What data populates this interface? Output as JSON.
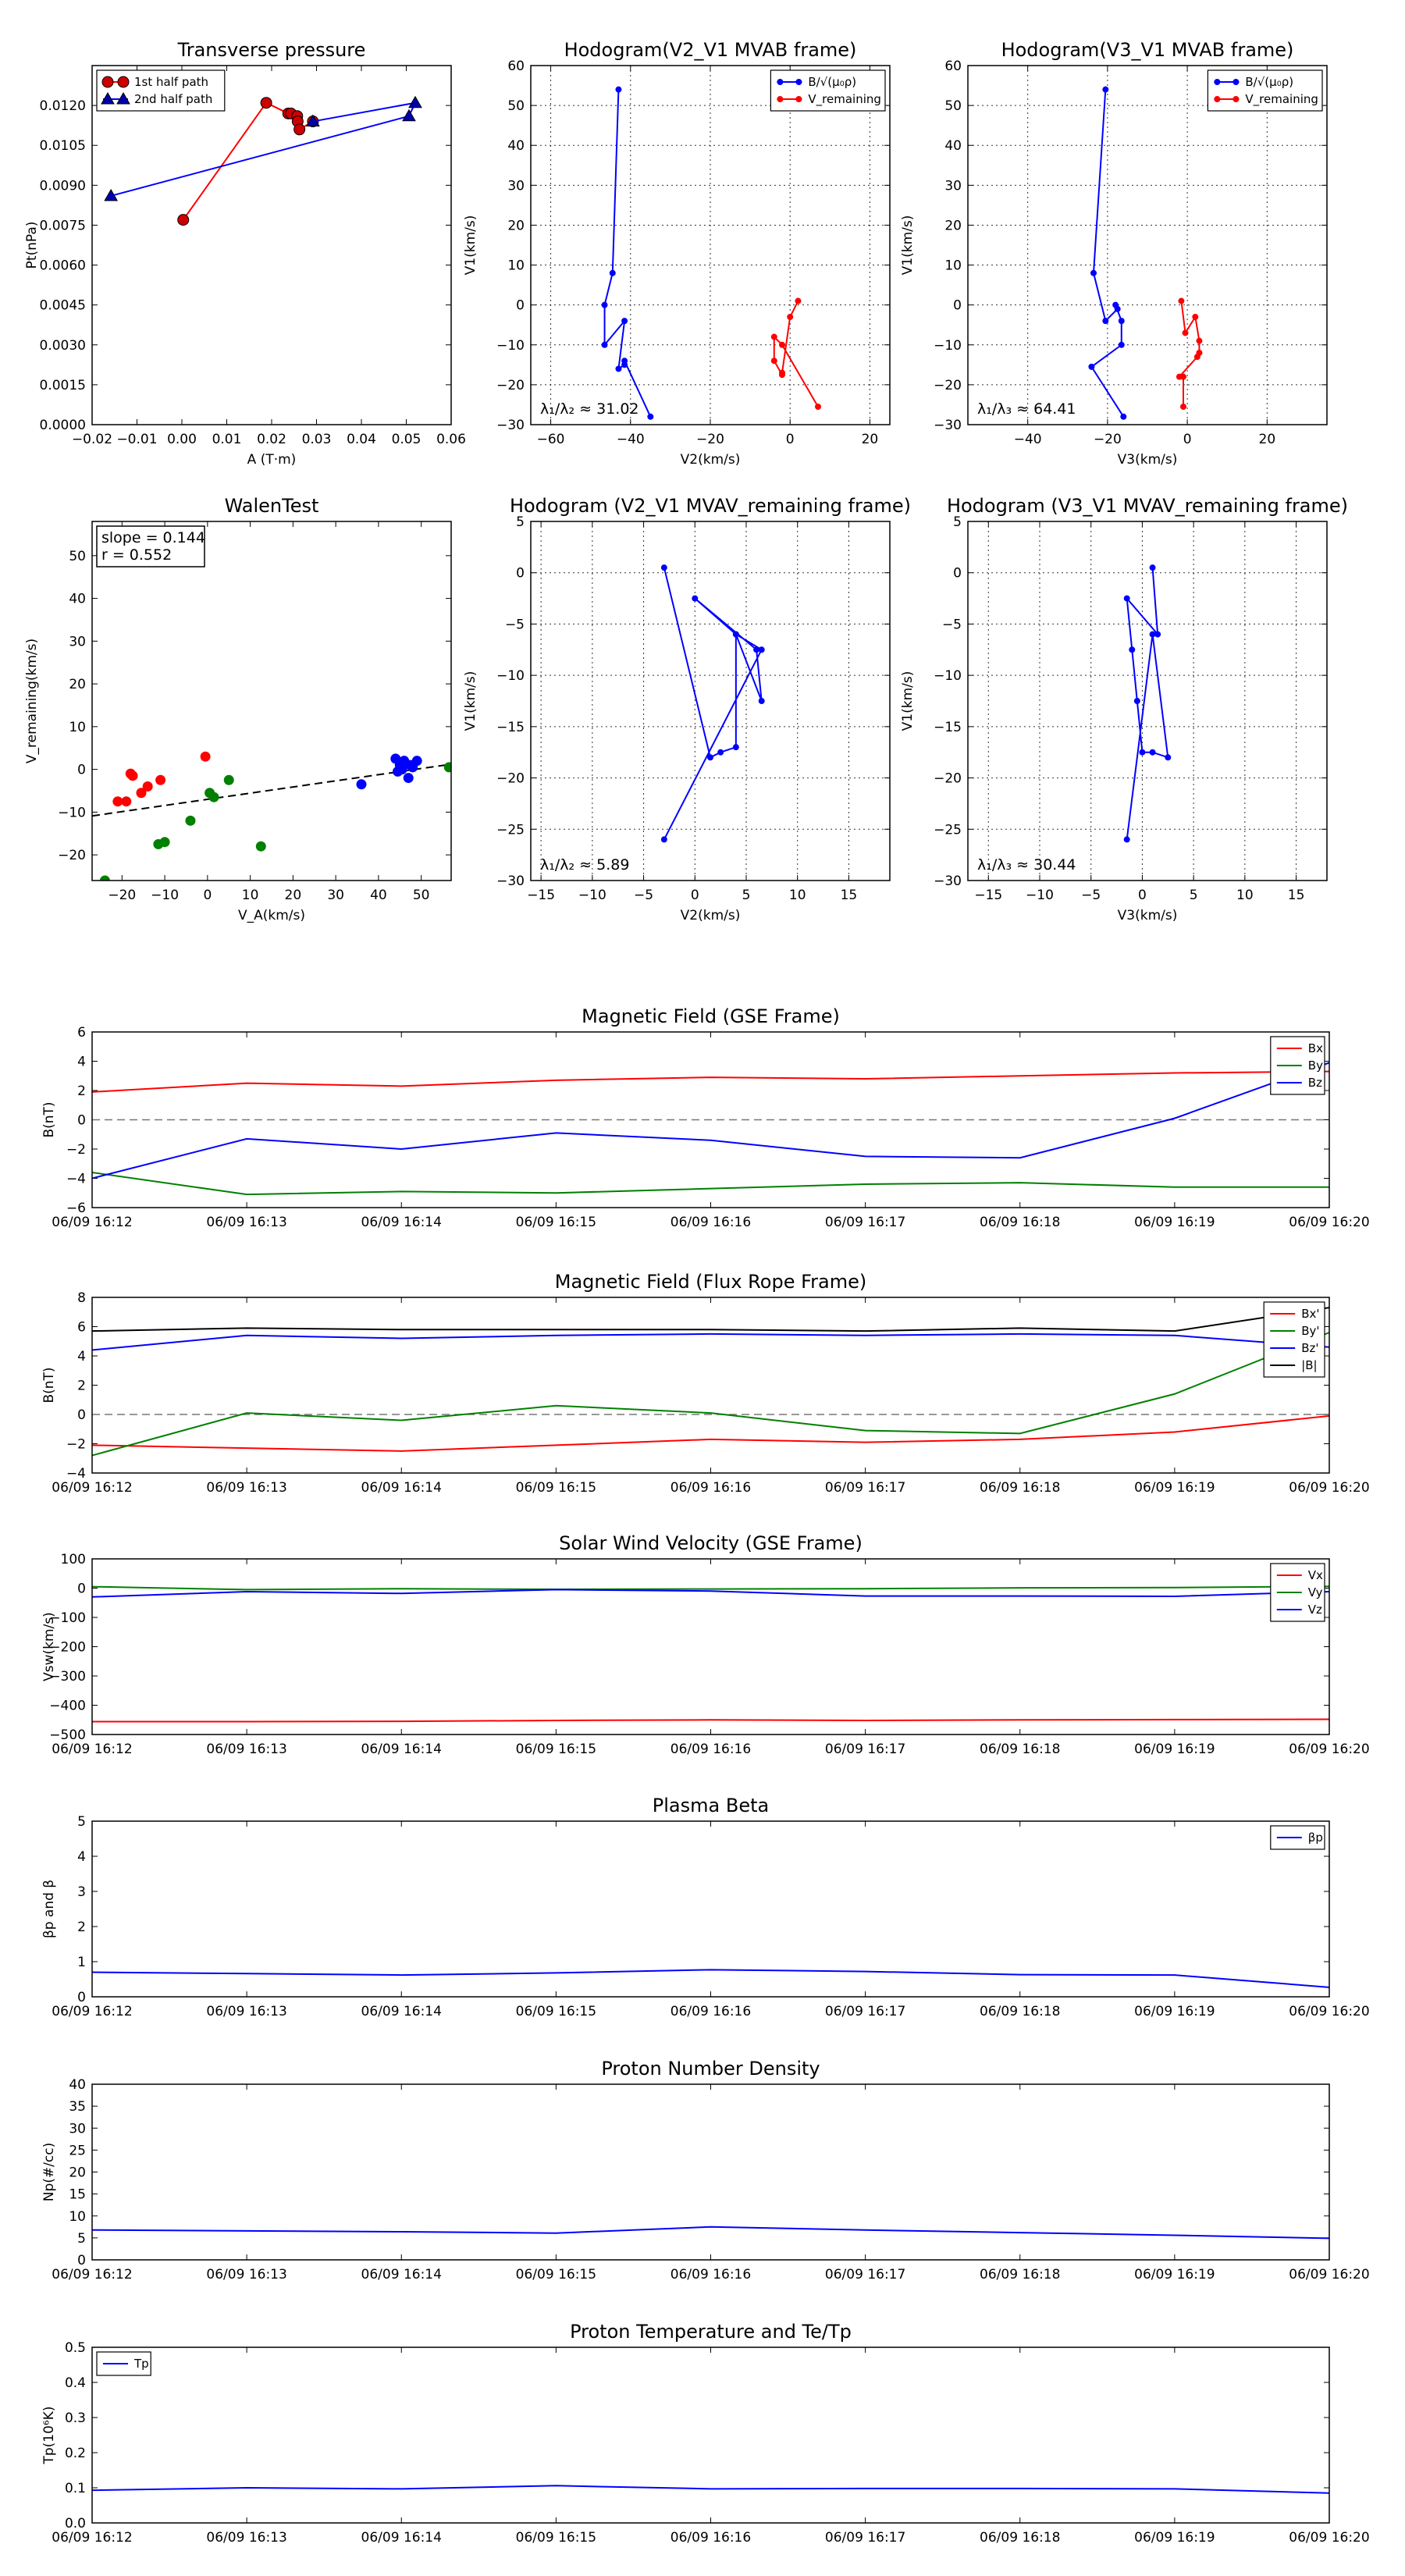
{
  "colors": {
    "red": "#ff0000",
    "blue": "#0000ff",
    "green": "#008000",
    "black": "#000000",
    "darkred": "#cc0000"
  },
  "chart_data": [
    {
      "id": "tp",
      "type": "line",
      "title": "Transverse pressure",
      "xlabel": "A (T·m)",
      "ylabel": "Pt(nPa)",
      "xlim": [
        -0.02,
        0.06
      ],
      "ylim": [
        0,
        0.0135
      ],
      "xticks": [
        -0.02,
        -0.01,
        0.0,
        0.01,
        0.02,
        0.03,
        0.04,
        0.05,
        0.06
      ],
      "xtick_labels": [
        "−0.02",
        "−0.01",
        "0.00",
        "0.01",
        "0.02",
        "0.03",
        "0.04",
        "0.05",
        "0.06"
      ],
      "yticks": [
        0,
        0.0015,
        0.003,
        0.0045,
        0.006,
        0.0075,
        0.009,
        0.0105,
        0.012
      ],
      "ytick_labels": [
        "0.0000",
        "0.0015",
        "0.0030",
        "0.0045",
        "0.0060",
        "0.0075",
        "0.0090",
        "0.0105",
        "0.0120"
      ],
      "grid": false,
      "legend": "top-left",
      "series": [
        {
          "name": "1st half path",
          "color": "#ff0000",
          "marker": "circle",
          "markerfill": "#cc0000",
          "x": [
            0.0003,
            0.0188,
            0.0237,
            0.0243,
            0.0257,
            0.0258,
            0.0262,
            0.0292
          ],
          "y": [
            0.0077,
            0.0121,
            0.0117,
            0.0117,
            0.0116,
            0.0114,
            0.0111,
            0.0114
          ]
        },
        {
          "name": "2nd half path",
          "color": "#0000ff",
          "marker": "triangle",
          "markerfill": "#0000aa",
          "x": [
            0.0292,
            0.052,
            0.0506,
            -0.0158
          ],
          "y": [
            0.0114,
            0.0121,
            0.0116,
            0.0086
          ]
        }
      ]
    },
    {
      "id": "h1",
      "type": "line",
      "title": "Hodogram(V2_V1 MVAB frame)",
      "xlabel": "V2(km/s)",
      "ylabel": "V1(km/s)",
      "xlim": [
        -65,
        25
      ],
      "ylim": [
        -30,
        60
      ],
      "xticks": [
        -60,
        -40,
        -20,
        0,
        20
      ],
      "xtick_labels": [
        "−60",
        "−40",
        "−20",
        "0",
        "20"
      ],
      "yticks": [
        -30,
        -20,
        -10,
        0,
        10,
        20,
        30,
        40,
        50,
        60
      ],
      "ytick_labels": [
        "−30",
        "−20",
        "−10",
        "0",
        "10",
        "20",
        "30",
        "40",
        "50",
        "60"
      ],
      "grid": true,
      "legend": "top-right",
      "annotation": "λ₁/λ₂ ≈ 31.02",
      "series": [
        {
          "name": "B/√(μ₀ρ)",
          "color": "#0000ff",
          "marker": "dot",
          "x": [
            -43,
            -44.5,
            -46.5,
            -46.5,
            -41.5,
            -43,
            -41.5,
            -41.5,
            -35
          ],
          "y": [
            54,
            8,
            0,
            -10,
            -4,
            -16,
            -15,
            -14,
            -28
          ]
        },
        {
          "name": "V_remaining",
          "color": "#ff0000",
          "marker": "dot",
          "x": [
            2,
            0,
            -2,
            -2,
            -4,
            -4,
            -2,
            7
          ],
          "y": [
            1,
            -3,
            -17,
            -17.5,
            -14,
            -8,
            -10,
            -25.5
          ]
        }
      ]
    },
    {
      "id": "h2",
      "type": "line",
      "title": "Hodogram(V3_V1 MVAB frame)",
      "xlabel": "V3(km/s)",
      "ylabel": "V1(km/s)",
      "xlim": [
        -55,
        35
      ],
      "ylim": [
        -30,
        60
      ],
      "xticks": [
        -40,
        -20,
        0,
        20
      ],
      "xtick_labels": [
        "−40",
        "−20",
        "0",
        "20"
      ],
      "yticks": [
        -30,
        -20,
        -10,
        0,
        10,
        20,
        30,
        40,
        50,
        60
      ],
      "ytick_labels": [
        "−30",
        "−20",
        "−10",
        "0",
        "10",
        "20",
        "30",
        "40",
        "50",
        "60"
      ],
      "grid": true,
      "legend": "top-right",
      "annotation": "λ₁/λ₃ ≈ 64.41",
      "series": [
        {
          "name": "B/√(μ₀ρ)",
          "color": "#0000ff",
          "marker": "dot",
          "x": [
            -20.5,
            -23.5,
            -20.5,
            -17.5,
            -18,
            -16.5,
            -16.5,
            -24,
            -16
          ],
          "y": [
            54,
            8,
            -4,
            -1,
            0,
            -4,
            -10,
            -15.5,
            -28
          ]
        },
        {
          "name": "V_remaining",
          "color": "#ff0000",
          "marker": "dot",
          "x": [
            -1.5,
            -0.5,
            2,
            3,
            3,
            2.5,
            -2,
            -1,
            -1
          ],
          "y": [
            1,
            -7,
            -3,
            -9,
            -12,
            -13,
            -18,
            -18,
            -25.5
          ]
        }
      ]
    },
    {
      "id": "walen",
      "type": "scatter",
      "title": "WalenTest",
      "xlabel": "V_A(km/s)",
      "ylabel": "V_remaining(km/s)",
      "xlim": [
        -27,
        57
      ],
      "ylim": [
        -26,
        58
      ],
      "xticks": [
        -20,
        -10,
        0,
        10,
        20,
        30,
        40,
        50
      ],
      "xtick_labels": [
        "−20",
        "−10",
        "0",
        "10",
        "20",
        "30",
        "40",
        "50"
      ],
      "yticks": [
        -20,
        -10,
        0,
        10,
        20,
        30,
        40,
        50
      ],
      "ytick_labels": [
        "−20",
        "−10",
        "0",
        "10",
        "20",
        "30",
        "40",
        "50"
      ],
      "grid": false,
      "fit_line": {
        "slope": 0.144,
        "intercept": -7,
        "style": "dashed"
      },
      "textbox": [
        "slope = 0.144",
        "r = 0.552"
      ],
      "series": [
        {
          "color": "#ff0000",
          "x": [
            -21,
            -19,
            -18,
            -17.5,
            -15.5,
            -14,
            -11,
            -0.5
          ],
          "y": [
            -7.5,
            -7.5,
            -1,
            -1.5,
            -5.5,
            -4,
            -2.5,
            3
          ]
        },
        {
          "color": "#008000",
          "x": [
            -24,
            -11.5,
            -10,
            -4,
            0.5,
            1.5,
            5,
            12.5,
            56.5
          ],
          "y": [
            -26,
            -17.5,
            -17,
            -12,
            -5.5,
            -6.5,
            -2.5,
            -18,
            0.5
          ]
        },
        {
          "color": "#0000ff",
          "x": [
            36,
            44,
            44.5,
            45,
            45.5,
            46,
            47,
            47.5,
            48,
            49
          ],
          "y": [
            -3.5,
            2.5,
            -0.5,
            1,
            0,
            2,
            -2,
            1,
            0.5,
            2
          ]
        }
      ]
    },
    {
      "id": "h3",
      "type": "line",
      "title": "Hodogram (V2_V1 MVAV_remaining frame)",
      "xlabel": "V2(km/s)",
      "ylabel": "V1(km/s)",
      "xlim": [
        -16,
        19
      ],
      "ylim": [
        -30,
        5
      ],
      "xticks": [
        -15,
        -10,
        -5,
        0,
        5,
        10,
        15
      ],
      "xtick_labels": [
        "−15",
        "−10",
        "−5",
        "0",
        "5",
        "10",
        "15"
      ],
      "yticks": [
        -30,
        -25,
        -20,
        -15,
        -10,
        -5,
        0,
        5
      ],
      "ytick_labels": [
        "−30",
        "−25",
        "−20",
        "−15",
        "−10",
        "−5",
        "0",
        "5"
      ],
      "grid": true,
      "legend": "none",
      "annotation": "λ₁/λ₂ ≈ 5.89",
      "series": [
        {
          "color": "#0000ff",
          "marker": "dot",
          "x": [
            -3,
            1.5,
            2.5,
            4,
            4,
            6.5,
            6,
            0,
            4,
            6.5,
            -3
          ],
          "y": [
            0.5,
            -18,
            -17.5,
            -17,
            -6,
            -12.5,
            -7.5,
            -2.5,
            -6,
            -7.5,
            -26
          ]
        }
      ]
    },
    {
      "id": "h4",
      "type": "line",
      "title": "Hodogram (V3_V1 MVAV_remaining frame)",
      "xlabel": "V3(km/s)",
      "ylabel": "V1(km/s)",
      "xlim": [
        -17,
        18
      ],
      "ylim": [
        -30,
        5
      ],
      "xticks": [
        -15,
        -10,
        -5,
        0,
        5,
        10,
        15
      ],
      "xtick_labels": [
        "−15",
        "−10",
        "−5",
        "0",
        "5",
        "10",
        "15"
      ],
      "yticks": [
        -30,
        -25,
        -20,
        -15,
        -10,
        -5,
        0,
        5
      ],
      "ytick_labels": [
        "−30",
        "−25",
        "−20",
        "−15",
        "−10",
        "−5",
        "0",
        "5"
      ],
      "grid": true,
      "legend": "none",
      "annotation": "λ₁/λ₃ ≈ 30.44",
      "series": [
        {
          "color": "#0000ff",
          "marker": "dot",
          "x": [
            1,
            1.5,
            -1.5,
            -1,
            -0.5,
            0,
            1,
            2.5,
            1,
            -1.5
          ],
          "y": [
            0.5,
            -6,
            -2.5,
            -7.5,
            -12.5,
            -17.5,
            -17.5,
            -18,
            -6,
            -26
          ]
        }
      ]
    },
    {
      "id": "ts_b",
      "type": "line",
      "title": "Magnetic Field (GSE Frame)",
      "xlabel": "",
      "ylabel": "B(nT)",
      "xlim": [
        0,
        8
      ],
      "ylim": [
        -6,
        6
      ],
      "x_categories": [
        "06/09 16:12",
        "06/09 16:13",
        "06/09 16:14",
        "06/09 16:15",
        "06/09 16:16",
        "06/09 16:17",
        "06/09 16:18",
        "06/09 16:19",
        "06/09 16:20"
      ],
      "yticks": [
        -6,
        -4,
        -2,
        0,
        2,
        4,
        6
      ],
      "ytick_labels": [
        "−6",
        "−4",
        "−2",
        "0",
        "2",
        "4",
        "6"
      ],
      "zero_line": true,
      "legend": "top-right",
      "series": [
        {
          "name": "Bx",
          "color": "#ff0000",
          "values": [
            1.9,
            2.5,
            2.3,
            2.7,
            2.9,
            2.8,
            3.0,
            3.2,
            3.3
          ]
        },
        {
          "name": "By",
          "color": "#008000",
          "values": [
            -3.6,
            -5.1,
            -4.9,
            -5.0,
            -4.7,
            -4.4,
            -4.3,
            -4.6,
            -4.6
          ]
        },
        {
          "name": "Bz",
          "color": "#0000ff",
          "values": [
            -4.0,
            -1.3,
            -2.0,
            -0.9,
            -1.4,
            -2.5,
            -2.6,
            0.1,
            3.9
          ]
        }
      ]
    },
    {
      "id": "ts_bfr",
      "type": "line",
      "title": "Magnetic Field (Flux Rope Frame)",
      "xlabel": "",
      "ylabel": "B(nT)",
      "xlim": [
        0,
        8
      ],
      "ylim": [
        -4,
        8
      ],
      "x_categories": [
        "06/09 16:12",
        "06/09 16:13",
        "06/09 16:14",
        "06/09 16:15",
        "06/09 16:16",
        "06/09 16:17",
        "06/09 16:18",
        "06/09 16:19",
        "06/09 16:20"
      ],
      "yticks": [
        -4,
        -2,
        0,
        2,
        4,
        6,
        8
      ],
      "ytick_labels": [
        "−4",
        "−2",
        "0",
        "2",
        "4",
        "6",
        "8"
      ],
      "zero_line": true,
      "legend": "top-right",
      "series": [
        {
          "name": "Bx'",
          "color": "#ff0000",
          "values": [
            -2.1,
            -2.3,
            -2.5,
            -2.1,
            -1.7,
            -1.9,
            -1.7,
            -1.2,
            -0.1
          ]
        },
        {
          "name": "By'",
          "color": "#008000",
          "values": [
            -2.8,
            0.1,
            -0.4,
            0.6,
            0.1,
            -1.1,
            -1.3,
            1.4,
            5.6
          ]
        },
        {
          "name": "Bz'",
          "color": "#0000ff",
          "values": [
            4.4,
            5.4,
            5.2,
            5.4,
            5.5,
            5.4,
            5.5,
            5.4,
            4.6
          ]
        },
        {
          "name": "|B|",
          "color": "#000000",
          "values": [
            5.7,
            5.9,
            5.8,
            5.8,
            5.8,
            5.7,
            5.9,
            5.7,
            7.3
          ]
        }
      ]
    },
    {
      "id": "ts_v",
      "type": "line",
      "title": "Solar Wind Velocity (GSE Frame)",
      "xlabel": "",
      "ylabel": "Vsw(km/s)",
      "xlim": [
        0,
        8
      ],
      "ylim": [
        -500,
        100
      ],
      "x_categories": [
        "06/09 16:12",
        "06/09 16:13",
        "06/09 16:14",
        "06/09 16:15",
        "06/09 16:16",
        "06/09 16:17",
        "06/09 16:18",
        "06/09 16:19",
        "06/09 16:20"
      ],
      "yticks": [
        -500,
        -400,
        -300,
        -200,
        -100,
        0,
        100
      ],
      "ytick_labels": [
        "−500",
        "−400",
        "−300",
        "−200",
        "−100",
        "0",
        "100"
      ],
      "zero_line": false,
      "legend": "top-right",
      "series": [
        {
          "name": "Vx",
          "color": "#ff0000",
          "values": [
            -456,
            -456,
            -455,
            -452,
            -450,
            -452,
            -450,
            -449,
            -448
          ]
        },
        {
          "name": "Vy",
          "color": "#008000",
          "values": [
            5,
            -5,
            -2,
            -4,
            -3,
            -2,
            1,
            2,
            6
          ]
        },
        {
          "name": "Vz",
          "color": "#0000ff",
          "values": [
            -30,
            -12,
            -18,
            -5,
            -10,
            -27,
            -27,
            -28,
            -12
          ]
        }
      ]
    },
    {
      "id": "ts_beta",
      "type": "line",
      "title": "Plasma Beta",
      "xlabel": "",
      "ylabel": "βp and β",
      "xlim": [
        0,
        8
      ],
      "ylim": [
        0,
        5
      ],
      "x_categories": [
        "06/09 16:12",
        "06/09 16:13",
        "06/09 16:14",
        "06/09 16:15",
        "06/09 16:16",
        "06/09 16:17",
        "06/09 16:18",
        "06/09 16:19",
        "06/09 16:20"
      ],
      "yticks": [
        0,
        1,
        2,
        3,
        4,
        5
      ],
      "ytick_labels": [
        "0",
        "1",
        "2",
        "3",
        "4",
        "5"
      ],
      "zero_line": false,
      "legend": "top-right",
      "series": [
        {
          "name": "βp",
          "color": "#0000ff",
          "values": [
            0.7,
            0.66,
            0.62,
            0.68,
            0.77,
            0.72,
            0.63,
            0.62,
            0.27
          ]
        }
      ]
    },
    {
      "id": "ts_np",
      "type": "line",
      "title": "Proton Number Density",
      "xlabel": "",
      "ylabel": "Np(#/cc)",
      "xlim": [
        0,
        8
      ],
      "ylim": [
        0,
        40
      ],
      "x_categories": [
        "06/09 16:12",
        "06/09 16:13",
        "06/09 16:14",
        "06/09 16:15",
        "06/09 16:16",
        "06/09 16:17",
        "06/09 16:18",
        "06/09 16:19",
        "06/09 16:20"
      ],
      "yticks": [
        0,
        5,
        10,
        15,
        20,
        25,
        30,
        35,
        40
      ],
      "ytick_labels": [
        "0",
        "5",
        "10",
        "15",
        "20",
        "25",
        "30",
        "35",
        "40"
      ],
      "zero_line": false,
      "legend": "none",
      "series": [
        {
          "color": "#0000ff",
          "values": [
            6.8,
            6.6,
            6.4,
            6.1,
            7.5,
            6.8,
            6.2,
            5.6,
            4.9
          ]
        }
      ]
    },
    {
      "id": "ts_tp",
      "type": "line",
      "title": "Proton Temperature and Te/Tp",
      "xlabel": "",
      "ylabel": "Tp(10⁶K)",
      "xlim": [
        0,
        8
      ],
      "ylim": [
        0,
        0.5
      ],
      "x_categories": [
        "06/09 16:12",
        "06/09 16:13",
        "06/09 16:14",
        "06/09 16:15",
        "06/09 16:16",
        "06/09 16:17",
        "06/09 16:18",
        "06/09 16:19",
        "06/09 16:20"
      ],
      "yticks": [
        0,
        0.1,
        0.2,
        0.3,
        0.4,
        0.5
      ],
      "ytick_labels": [
        "0.0",
        "0.1",
        "0.2",
        "0.3",
        "0.4",
        "0.5"
      ],
      "zero_line": false,
      "legend": "top-left",
      "series": [
        {
          "name": "Tp",
          "color": "#0000ff",
          "values": [
            0.093,
            0.1,
            0.097,
            0.106,
            0.097,
            0.098,
            0.098,
            0.097,
            0.085
          ]
        }
      ]
    }
  ]
}
